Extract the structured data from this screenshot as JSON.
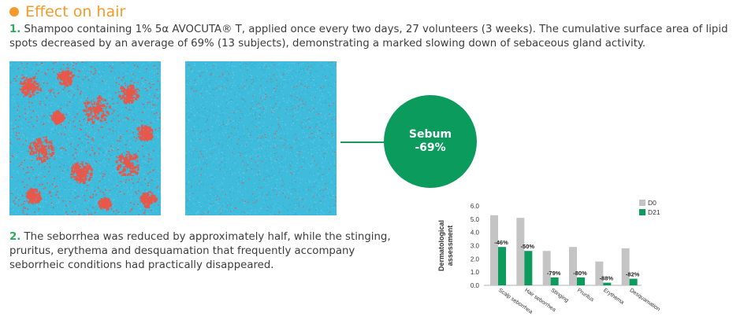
{
  "section": {
    "title": "Effect on hair"
  },
  "paragraph1": {
    "number": "1.",
    "text": "Shampoo containing 1% 5α AVOCUTA® T, applied once every two days, 27 volunteers (3 weeks). The cumulative surface area of lipid spots decreased by an average of 69% (13 subjects), demonstrating a marked slowing down of sebaceous gland activity."
  },
  "paragraph2": {
    "number": "2.",
    "text": "The seborrhea was reduced by approximately half, while the stinging, pruritus, erythema and desquamation that frequently accompany seborrheic conditions had practically disappeared."
  },
  "callout": {
    "label": "Sebum",
    "value": "-69%"
  },
  "colors": {
    "accent_orange": "#f39a2b",
    "accent_green": "#0b9b5c",
    "scalp_blue": "#3fbbdc",
    "lipid_red": "#e8584a",
    "bar_d0": "#c4c4c4",
    "bar_d21": "#0b9b5c"
  },
  "chart_data": {
    "type": "bar",
    "categories": [
      "Scalp seborrhea",
      "Hair seborrhea",
      "Stinging",
      "Pruritus",
      "Erythema",
      "Desquamation"
    ],
    "series": [
      {
        "name": "D0",
        "values": [
          5.3,
          5.1,
          2.6,
          2.9,
          1.8,
          2.8
        ]
      },
      {
        "name": "D21",
        "values": [
          2.9,
          2.6,
          0.6,
          0.6,
          0.2,
          0.5
        ]
      }
    ],
    "annotations": [
      "-46%",
      "-50%",
      "-79%",
      "-80%",
      "-88%",
      "-82%"
    ],
    "ylabel": "Dermatological assessment",
    "yticks": [
      "0.0",
      "1.0",
      "2.0",
      "3.0",
      "4.0",
      "5.0",
      "6.0"
    ],
    "ylim": [
      0,
      6
    ],
    "legend": "top-right"
  }
}
